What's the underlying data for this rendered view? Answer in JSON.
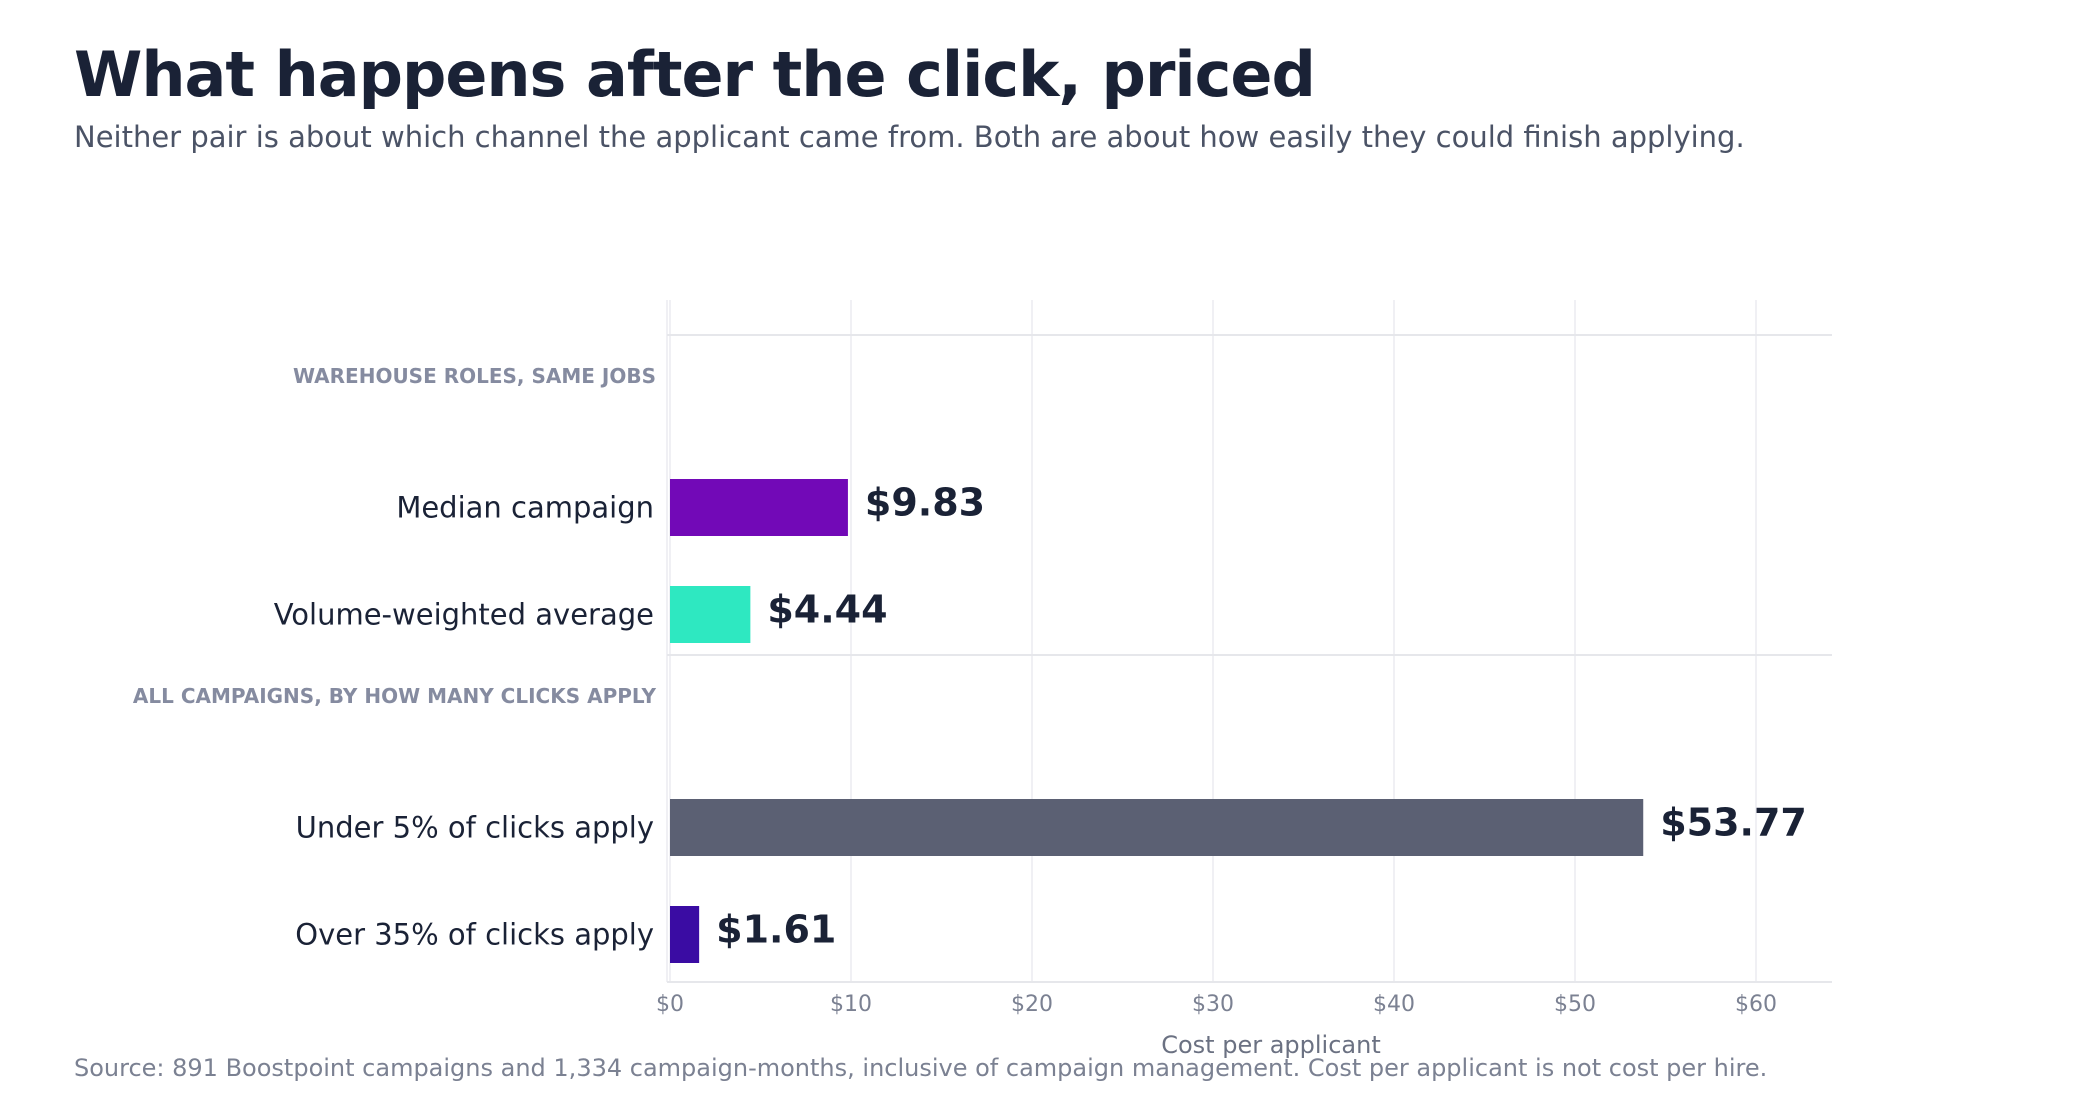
{
  "title": "What happens after the click, priced",
  "subtitle": "Neither pair is about which channel the applicant came from. Both are about how easily they could finish applying.",
  "source": "Source: 891 Boostpoint campaigns and 1,334 campaign-months, inclusive of campaign management. Cost per applicant is not cost per hire.",
  "chart_data": {
    "type": "bar",
    "orientation": "horizontal",
    "xlabel": "Cost per applicant",
    "xlim": [
      0,
      64
    ],
    "x_ticks": [
      0,
      10,
      20,
      30,
      40,
      50,
      60
    ],
    "x_tick_labels": [
      "$0",
      "$10",
      "$20",
      "$30",
      "$40",
      "$50",
      "$60"
    ],
    "grid": true,
    "groups": [
      {
        "label": "WAREHOUSE ROLES, SAME JOBS",
        "bars": [
          {
            "category": "Median campaign",
            "value": 9.83,
            "value_label": "$9.83",
            "color": "#7209b7"
          },
          {
            "category": "Volume-weighted average",
            "value": 4.44,
            "value_label": "$4.44",
            "color": "#2ee8c1"
          }
        ]
      },
      {
        "label": "ALL CAMPAIGNS, BY HOW MANY CLICKS APPLY",
        "bars": [
          {
            "category": "Under 5% of clicks apply",
            "value": 53.77,
            "value_label": "$53.77",
            "color": "#5b6073"
          },
          {
            "category": "Over 35% of clicks apply",
            "value": 1.61,
            "value_label": "$1.61",
            "color": "#3a0ca3"
          }
        ]
      }
    ]
  }
}
